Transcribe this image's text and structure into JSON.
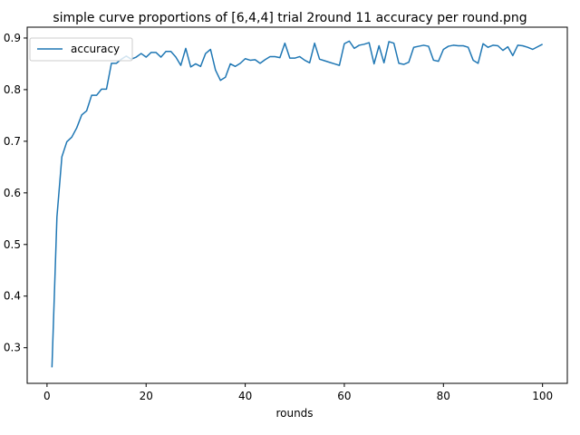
{
  "chart_data": {
    "type": "line",
    "title": "simple curve proportions of [6,4,4] trial 2round 11 accuracy per round.png",
    "xlabel": "rounds",
    "ylabel": "",
    "xlim": [
      -4,
      105
    ],
    "ylim": [
      0.231,
      0.921
    ],
    "x_ticks": [
      0,
      20,
      40,
      60,
      80,
      100
    ],
    "x_tick_labels": [
      "0",
      "20",
      "40",
      "60",
      "80",
      "100"
    ],
    "y_ticks": [
      0.3,
      0.4,
      0.5,
      0.6,
      0.7,
      0.8,
      0.9
    ],
    "y_tick_labels": [
      "0.3",
      "0.4",
      "0.5",
      "0.6",
      "0.7",
      "0.8",
      "0.9"
    ],
    "grid": false,
    "legend_position": "top-left",
    "series": [
      {
        "name": "accuracy",
        "color": "#1f77b4",
        "x": [
          1,
          2,
          3,
          4,
          5,
          6,
          7,
          8,
          9,
          10,
          11,
          12,
          13,
          14,
          15,
          16,
          17,
          18,
          19,
          20,
          21,
          22,
          23,
          24,
          25,
          26,
          27,
          28,
          29,
          30,
          31,
          32,
          33,
          34,
          35,
          36,
          37,
          38,
          39,
          40,
          41,
          42,
          43,
          44,
          45,
          46,
          47,
          48,
          49,
          50,
          51,
          52,
          53,
          54,
          55,
          56,
          57,
          58,
          59,
          60,
          61,
          62,
          63,
          64,
          65,
          66,
          67,
          68,
          69,
          70,
          71,
          72,
          73,
          74,
          75,
          76,
          77,
          78,
          79,
          80,
          81,
          82,
          83,
          84,
          85,
          86,
          87,
          88,
          89,
          90,
          91,
          92,
          93,
          94,
          95,
          96,
          97,
          98,
          99,
          100
        ],
        "y": [
          0.262,
          0.553,
          0.67,
          0.699,
          0.708,
          0.726,
          0.751,
          0.759,
          0.789,
          0.789,
          0.801,
          0.801,
          0.851,
          0.851,
          0.859,
          0.865,
          0.859,
          0.863,
          0.87,
          0.863,
          0.872,
          0.872,
          0.863,
          0.874,
          0.874,
          0.863,
          0.847,
          0.88,
          0.844,
          0.85,
          0.845,
          0.87,
          0.878,
          0.838,
          0.818,
          0.824,
          0.85,
          0.845,
          0.851,
          0.86,
          0.857,
          0.858,
          0.851,
          0.858,
          0.864,
          0.864,
          0.862,
          0.89,
          0.861,
          0.861,
          0.864,
          0.857,
          0.852,
          0.89,
          0.859,
          0.856,
          0.853,
          0.85,
          0.847,
          0.889,
          0.894,
          0.88,
          0.886,
          0.888,
          0.891,
          0.85,
          0.885,
          0.852,
          0.893,
          0.89,
          0.851,
          0.849,
          0.853,
          0.882,
          0.884,
          0.886,
          0.884,
          0.857,
          0.855,
          0.878,
          0.884,
          0.886,
          0.885,
          0.885,
          0.882,
          0.857,
          0.851,
          0.889,
          0.882,
          0.886,
          0.885,
          0.876,
          0.883,
          0.866,
          0.886,
          0.885,
          0.882,
          0.878,
          0.883,
          0.888
        ]
      }
    ]
  }
}
